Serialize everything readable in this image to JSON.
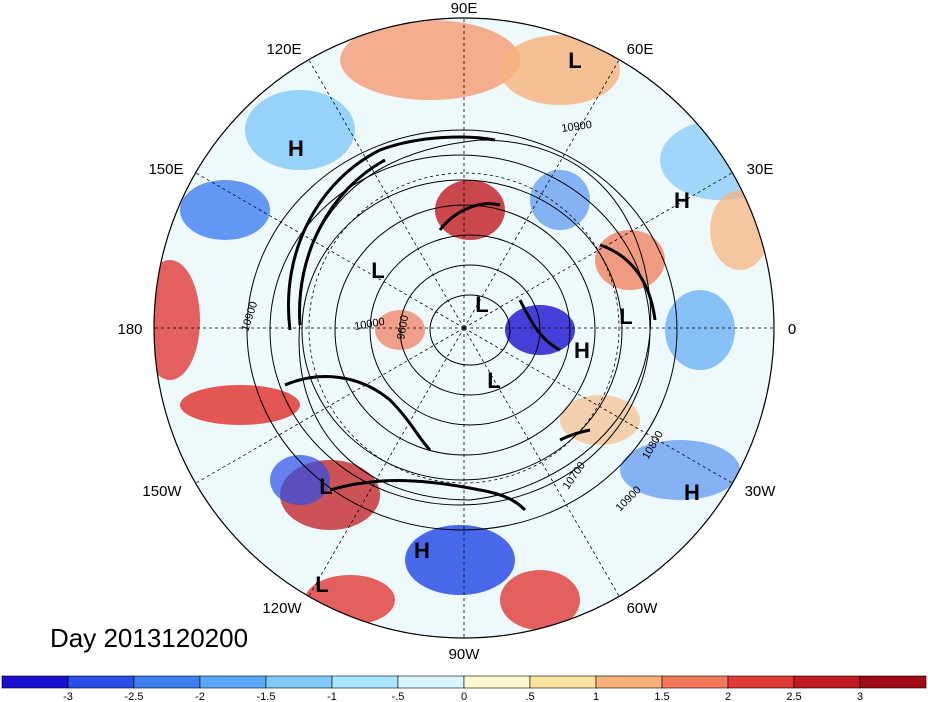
{
  "title": "Day 2013120200",
  "longitude_labels": {
    "lon_90e": "90E",
    "lon_120e": "120E",
    "lon_60e": "60E",
    "lon_150e": "150E",
    "lon_30e": "30E",
    "lon_180": "180",
    "lon_0": "0",
    "lon_150w": "150W",
    "lon_30w": "30W",
    "lon_120w": "120W",
    "lon_60w": "60W",
    "lon_90w": "90W"
  },
  "pressure_centers": [
    {
      "type": "L"
    },
    {
      "type": "H"
    },
    {
      "type": "H"
    },
    {
      "type": "L"
    },
    {
      "type": "L"
    },
    {
      "type": "L"
    },
    {
      "type": "H"
    },
    {
      "type": "L"
    },
    {
      "type": "L"
    },
    {
      "type": "H"
    },
    {
      "type": "H"
    },
    {
      "type": "L"
    }
  ],
  "contour_labels": [
    "10900",
    "10900",
    "10000",
    "9600",
    "10700",
    "10800",
    "10900"
  ],
  "colorbar": {
    "ticks": [
      "-3",
      "-2.5",
      "-2",
      "-1.5",
      "-1",
      "-.5",
      "0",
      ".5",
      "1",
      "1.5",
      "2",
      "2.5",
      "3"
    ],
    "colors": [
      "#1a10d0",
      "#2a4fe8",
      "#3f80f0",
      "#5aa8f5",
      "#7fc8f8",
      "#a8e6fb",
      "#d6f5fd",
      "#fdf8d0",
      "#fbe3a0",
      "#f7b27a",
      "#f1795a",
      "#e03a36",
      "#c01a20",
      "#a00a15"
    ]
  }
}
